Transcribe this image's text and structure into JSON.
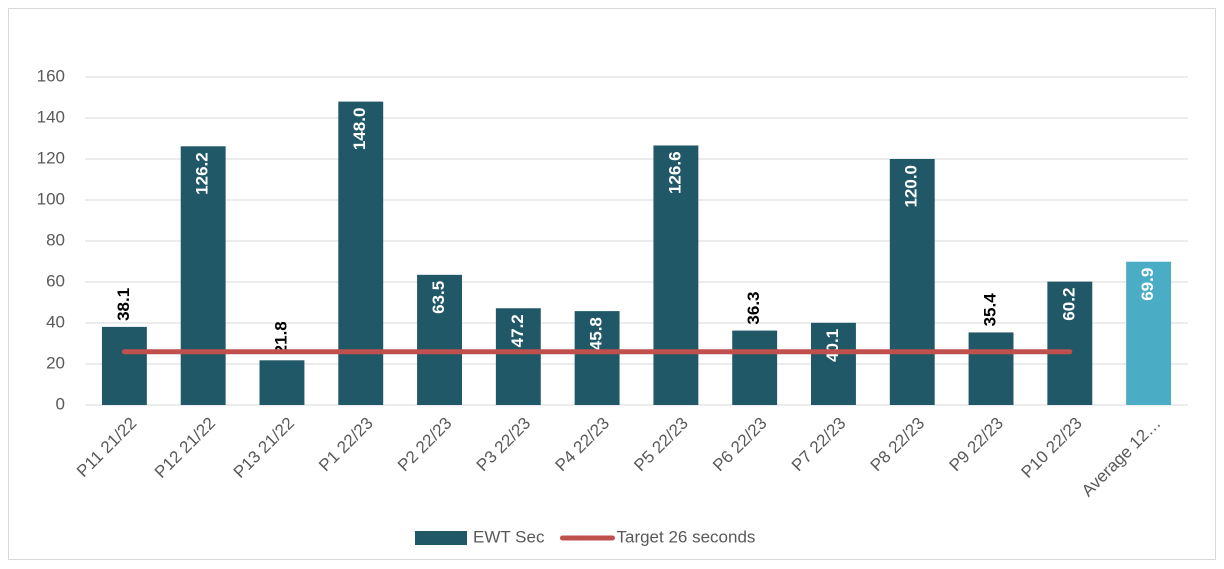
{
  "chart_data": {
    "type": "bar",
    "categories": [
      "P11 21/22",
      "P12 21/22",
      "P13 21/22",
      "P1 22/23",
      "P2 22/23",
      "P3 22/23",
      "P4 22/23",
      "P5 22/23",
      "P6 22/23",
      "P7 22/23",
      "P8 22/23",
      "P9 22/23",
      "P10 22/23",
      "Average 12…"
    ],
    "series": [
      {
        "name": "EWT Sec",
        "type": "bar",
        "color": "#215867",
        "colors": [
          "#215867",
          "#215867",
          "#215867",
          "#215867",
          "#215867",
          "#215867",
          "#215867",
          "#215867",
          "#215867",
          "#215867",
          "#215867",
          "#215867",
          "#215867",
          "#4bacc6"
        ],
        "values": [
          38.1,
          126.2,
          21.8,
          148.0,
          63.5,
          47.2,
          45.8,
          126.6,
          36.3,
          40.1,
          120.0,
          35.4,
          60.2,
          69.9
        ],
        "value_labels": [
          "38.1",
          "126.2",
          "21.8",
          "148.0",
          "63.5",
          "47.2",
          "45.8",
          "126.6",
          "36.3",
          "40.1",
          "120.0",
          "35.4",
          "60.2",
          "69.9"
        ]
      },
      {
        "name": "Target 26 seconds",
        "type": "line",
        "color": "#c0504d",
        "values": [
          26,
          26,
          26,
          26,
          26,
          26,
          26,
          26,
          26,
          26,
          26,
          26,
          26,
          null
        ]
      }
    ],
    "ylim": [
      0,
      160
    ],
    "yticks": [
      0,
      20,
      40,
      60,
      80,
      100,
      120,
      140,
      160
    ],
    "grid": true,
    "legend": "bottom"
  }
}
